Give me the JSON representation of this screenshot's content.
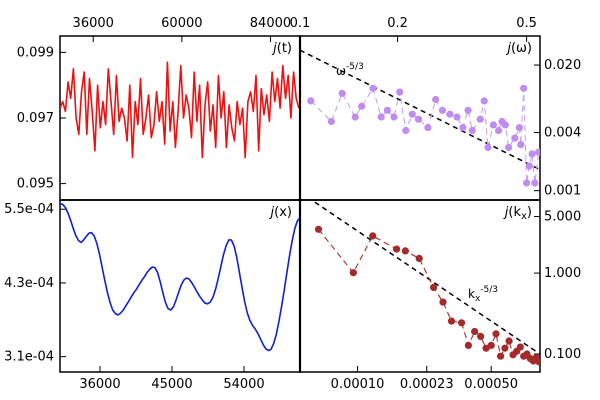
{
  "chart_data": [
    {
      "id": "jt",
      "type": "line",
      "label": "j(t)",
      "label_italic": "j",
      "label_rest": "(t)",
      "xscale": "linear",
      "yscale": "linear",
      "xlim": [
        27000,
        92000
      ],
      "ylim": [
        0.0945,
        0.0995
      ],
      "xticks": [
        36000,
        60000,
        84000
      ],
      "xtick_labels": [
        "36000",
        "60000",
        "84000"
      ],
      "xaxis_position": "top",
      "yticks": [
        0.095,
        0.097,
        0.099
      ],
      "ytick_labels": [
        "0.095",
        "0.097",
        "0.099"
      ],
      "yaxis_position": "left",
      "line_color": "#ee1111",
      "marker_color": null,
      "series": [
        {
          "name": "j(t)",
          "x": [
            27000,
            27727,
            28454,
            29181,
            29908,
            30635,
            31362,
            32090,
            32817,
            33544,
            34271,
            34998,
            35725,
            36452,
            37179,
            37906,
            38633,
            39360,
            40088,
            40815,
            41542,
            42269,
            42996,
            43723,
            44450,
            45177,
            45904,
            46631,
            47358,
            48085,
            48813,
            49540,
            50267,
            50994,
            51721,
            52448,
            53175,
            53902,
            54629,
            55356,
            56083,
            56811,
            57538,
            58265,
            58992,
            59719,
            60446,
            61173,
            61900,
            62627,
            63354,
            64081,
            64809,
            65536,
            66263,
            66990,
            67717,
            68444,
            69171,
            69898,
            70625,
            71352,
            72079,
            72806,
            73534,
            74261,
            74988,
            75715,
            76442,
            77169,
            77896,
            78623,
            79350,
            80077,
            80804,
            81531,
            82258,
            82985,
            83712,
            84440,
            85167,
            85894,
            86621,
            87348,
            88075,
            88802,
            89529,
            90256,
            90983,
            91710
          ],
          "y": [
            0.0973,
            0.0975,
            0.0972,
            0.0981,
            0.0976,
            0.0985,
            0.097,
            0.0965,
            0.0978,
            0.0984,
            0.0965,
            0.0982,
            0.0972,
            0.096,
            0.098,
            0.0967,
            0.0975,
            0.0968,
            0.0985,
            0.0975,
            0.0965,
            0.0983,
            0.0969,
            0.0973,
            0.097,
            0.0963,
            0.098,
            0.0958,
            0.0975,
            0.0968,
            0.0982,
            0.0965,
            0.097,
            0.0977,
            0.0964,
            0.0968,
            0.0978,
            0.0969,
            0.0975,
            0.0962,
            0.0987,
            0.0966,
            0.0975,
            0.0961,
            0.0972,
            0.0986,
            0.097,
            0.0977,
            0.0973,
            0.0964,
            0.0984,
            0.0969,
            0.098,
            0.0958,
            0.0974,
            0.0981,
            0.0966,
            0.0974,
            0.0961,
            0.0983,
            0.097,
            0.0978,
            0.0961,
            0.0974,
            0.0967,
            0.0963,
            0.0975,
            0.0968,
            0.0973,
            0.0958,
            0.0975,
            0.0978,
            0.0972,
            0.0983,
            0.096,
            0.0979,
            0.0971,
            0.0977,
            0.0969,
            0.0984,
            0.0975,
            0.0982,
            0.0973,
            0.0986,
            0.0976,
            0.0983,
            0.097,
            0.0984,
            0.0976,
            0.0973
          ]
        }
      ]
    },
    {
      "id": "jw",
      "type": "scatter",
      "label_italic": "j",
      "label_rest": "(ω)",
      "xscale": "log",
      "yscale": "log",
      "xlim": [
        0.1,
        0.55
      ],
      "ylim": [
        0.0008,
        0.04
      ],
      "xticks": [
        0.1,
        0.2,
        0.5
      ],
      "xtick_labels": [
        "0.1",
        "0.2",
        "0.5"
      ],
      "xaxis_position": "top",
      "yticks": [
        0.001,
        0.004,
        0.02
      ],
      "ytick_labels": [
        "0.001",
        "0.004",
        "0.020"
      ],
      "yaxis_position": "right",
      "line_color": "#c8a2f0",
      "marker_color": "#bf8cf0",
      "reference_line": {
        "label_base": "ω",
        "label_exp": "-5/3",
        "x": [
          0.1,
          0.55
        ],
        "y": [
          0.0285,
          0.00165
        ],
        "style": "dashed",
        "color": "#000000"
      },
      "series": [
        {
          "name": "j(ω)",
          "x": [
            0.108,
            0.125,
            0.135,
            0.148,
            0.155,
            0.168,
            0.178,
            0.186,
            0.195,
            0.203,
            0.212,
            0.222,
            0.232,
            0.248,
            0.262,
            0.275,
            0.29,
            0.305,
            0.318,
            0.33,
            0.34,
            0.36,
            0.37,
            0.38,
            0.395,
            0.41,
            0.42,
            0.43,
            0.44,
            0.46,
            0.475,
            0.48,
            0.49,
            0.5,
            0.51,
            0.52,
            0.53,
            0.545
          ],
          "y": [
            0.0085,
            0.0052,
            0.0102,
            0.0058,
            0.0075,
            0.0115,
            0.0058,
            0.0068,
            0.0058,
            0.0105,
            0.0042,
            0.0062,
            0.0055,
            0.0045,
            0.0088,
            0.0068,
            0.0062,
            0.0058,
            0.0045,
            0.0068,
            0.0042,
            0.0055,
            0.0085,
            0.0028,
            0.0048,
            0.0042,
            0.0052,
            0.0048,
            0.0028,
            0.0035,
            0.0045,
            0.003,
            0.0115,
            0.0012,
            0.0018,
            0.0024,
            0.0012,
            0.0025
          ]
        }
      ]
    },
    {
      "id": "jx",
      "type": "line",
      "label_italic": "j",
      "label_rest": "(x)",
      "xscale": "linear",
      "yscale": "linear",
      "xlim": [
        31000,
        61000
      ],
      "ylim": [
        0.000285,
        0.000565
      ],
      "xticks": [
        36000,
        45000,
        54000
      ],
      "xtick_labels": [
        "36000",
        "45000",
        "54000"
      ],
      "xaxis_position": "bottom",
      "yticks": [
        0.00031,
        0.00043,
        0.00055
      ],
      "ytick_labels": [
        "3.1e-04",
        "4.3e-04",
        "5.5e-04"
      ],
      "yaxis_position": "left",
      "line_color": "#1020d0",
      "marker_color": null,
      "series": [
        {
          "name": "j(x)",
          "x": [
            31000,
            31330,
            31659,
            31989,
            32319,
            32648,
            32978,
            33308,
            33637,
            33967,
            34297,
            34626,
            34956,
            35286,
            35615,
            35945,
            36275,
            36604,
            36934,
            37264,
            37593,
            37923,
            38253,
            38582,
            38912,
            39242,
            39571,
            39901,
            40231,
            40560,
            40890,
            41220,
            41549,
            41879,
            42209,
            42538,
            42868,
            43198,
            43527,
            43857,
            44187,
            44516,
            44846,
            45176,
            45505,
            45835,
            46165,
            46495,
            46824,
            47154,
            47484,
            47813,
            48143,
            48473,
            48802,
            49132,
            49462,
            49791,
            50121,
            50451,
            50780,
            51110,
            51440,
            51769,
            52099,
            52429,
            52758,
            53088,
            53418,
            53747,
            54077,
            54407,
            54736,
            55066,
            55396,
            55725,
            56055,
            56385,
            56714,
            57044,
            57374,
            57703,
            58033,
            58363,
            58692,
            59022,
            59352,
            59681,
            60011,
            60341,
            60670,
            61000
          ],
          "y": [
            0.000559,
            0.000558,
            0.000553,
            0.000544,
            0.000532,
            0.000519,
            0.000507,
            0.000499,
            0.000496,
            0.0005,
            0.000506,
            0.000511,
            0.000512,
            0.000506,
            0.000494,
            0.000476,
            0.000455,
            0.000434,
            0.000414,
            0.000398,
            0.000386,
            0.00038,
            0.000378,
            0.000381,
            0.000386,
            0.000393,
            0.0004,
            0.000407,
            0.000414,
            0.00042,
            0.000427,
            0.000434,
            0.00044,
            0.000447,
            0.000452,
            0.000456,
            0.000455,
            0.000447,
            0.000432,
            0.000414,
            0.000398,
            0.000388,
            0.000386,
            0.000391,
            0.000402,
            0.000415,
            0.000427,
            0.000435,
            0.000438,
            0.000436,
            0.00043,
            0.000423,
            0.000415,
            0.000408,
            0.000402,
            0.000397,
            0.000396,
            0.000399,
            0.000407,
            0.00042,
            0.000437,
            0.000457,
            0.000476,
            0.000491,
            0.0005,
            0.0005,
            0.00049,
            0.000472,
            0.000448,
            0.000423,
            0.0004,
            0.000381,
            0.000369,
            0.000361,
            0.000355,
            0.000348,
            0.000339,
            0.00033,
            0.000323,
            0.00032,
            0.000322,
            0.000331,
            0.000346,
            0.000367,
            0.000391,
            0.000418,
            0.000446,
            0.000473,
            0.000498,
            0.000518,
            0.000531,
            0.000536
          ]
        }
      ]
    },
    {
      "id": "jk",
      "type": "scatter",
      "label_italic": "j",
      "label_rest": "(k",
      "label_sub": "x",
      "label_close": ")",
      "xscale": "log",
      "yscale": "log",
      "xlim": [
        5e-05,
        0.0009
      ],
      "ylim": [
        0.06,
        8
      ],
      "xticks": [
        0.0001,
        0.00023,
        0.0005
      ],
      "xtick_labels": [
        "0.00010",
        "0.00023",
        "0.00050"
      ],
      "xaxis_position": "bottom",
      "yticks": [
        0.1,
        1.0,
        5.0
      ],
      "ytick_labels": [
        "0.100",
        "1.000",
        "5.000"
      ],
      "yaxis_position": "right",
      "line_color": "#a52a2a",
      "marker_color": "#a52a2a",
      "reference_line": {
        "label_base": "k",
        "label_sub": "x",
        "label_exp": "-5/3",
        "x": [
          5e-05,
          0.0009
        ],
        "y": [
          10.0,
          0.1
        ],
        "style": "dashed",
        "color": "#000000"
      },
      "series": [
        {
          "name": "j(kx)",
          "x": [
            6.25e-05,
            9.5e-05,
            0.00012,
            0.00016,
            0.000178,
            0.00021,
            0.00025,
            0.00028,
            0.00031,
            0.00035,
            0.00038,
            0.00041,
            0.00044,
            0.00047,
            0.0005,
            0.00053,
            0.00056,
            0.00059,
            0.00062,
            0.00065,
            0.00068,
            0.00071,
            0.00074,
            0.00077,
            0.0008,
            0.00083,
            0.00086,
            0.00089
          ],
          "y": [
            3.48,
            1.01,
            2.88,
            1.98,
            1.88,
            1.52,
            0.665,
            0.438,
            0.255,
            0.243,
            0.128,
            0.19,
            0.165,
            0.118,
            0.128,
            0.178,
            0.094,
            0.118,
            0.145,
            0.098,
            0.108,
            0.122,
            0.094,
            0.1,
            0.088,
            0.082,
            0.09,
            0.08
          ]
        }
      ]
    }
  ]
}
